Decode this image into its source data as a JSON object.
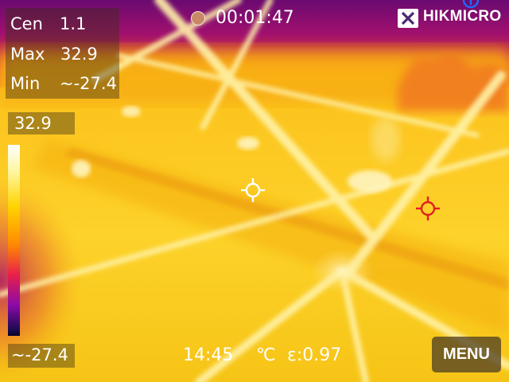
{
  "stats": {
    "center_label": "Cen",
    "center_value": "1.1",
    "max_label": "Max",
    "max_value": "32.9",
    "min_label": "Min",
    "min_value": "~-27.4"
  },
  "recording": {
    "indicator_icon": "record-dot-icon",
    "elapsed": "00:01:47"
  },
  "brand": {
    "logo_icon": "hikmicro-logo-icon",
    "name": "HIKMICRO"
  },
  "scale": {
    "max": "32.9",
    "min": "~-27.4",
    "palette": "iron"
  },
  "status_bar": {
    "clock": "14:45",
    "unit": "℃",
    "emissivity": "ε:0.97"
  },
  "menu_label": "MENU",
  "colors": {
    "hot": "#ffffff",
    "warm": "#ffd400",
    "mid": "#ff8a00",
    "cool": "#e8204a",
    "cold": "#1a0a50",
    "max_marker": "#e02020",
    "min_marker": "#1e6bff",
    "center_marker": "#ffffff"
  },
  "markers": {
    "center_icon": "center-crosshair-icon",
    "max_icon": "max-temp-crosshair-icon",
    "min_icon": "min-temp-marker-icon"
  }
}
